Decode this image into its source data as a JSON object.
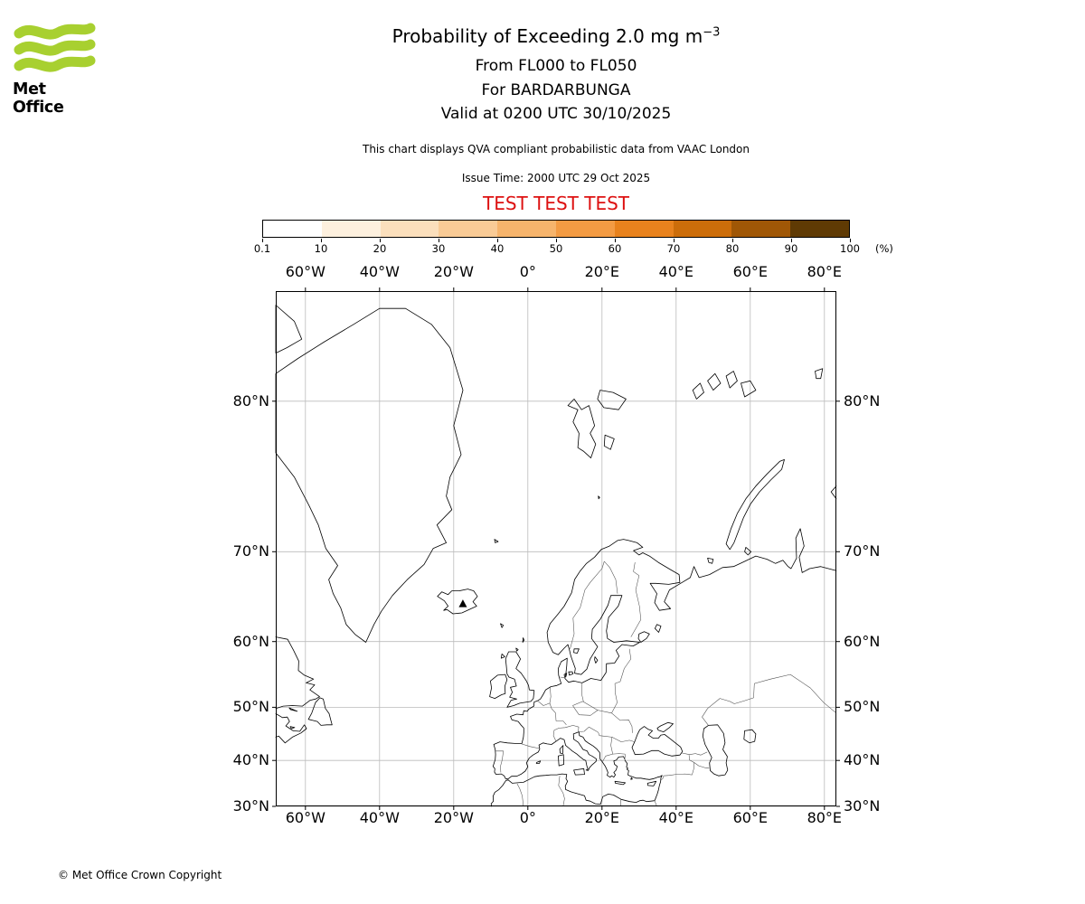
{
  "header": {
    "logo_text": "Met Office",
    "title": "Probability of Exceeding 2.0 mg m",
    "title_sup": "−3",
    "subtitle1": "From FL000 to FL050",
    "subtitle2": "For BARDARBUNGA",
    "subtitle3": "Valid at 0200 UTC 30/10/2025",
    "description": "This chart displays QVA compliant probabilistic data from VAAC London",
    "issue_time": "Issue Time: 2000 UTC 29 Oct 2025",
    "test_banner": "TEST TEST TEST"
  },
  "colorbar": {
    "tick_labels": [
      "0.1",
      "10",
      "20",
      "30",
      "40",
      "50",
      "60",
      "70",
      "80",
      "90",
      "100"
    ],
    "unit_label": "(%)",
    "colors": [
      "#ffffff",
      "#fdf0de",
      "#fbdfbc",
      "#f9cb96",
      "#f6b46c",
      "#f39b43",
      "#e8821d",
      "#cc6d0a",
      "#a05706",
      "#5f3a04"
    ]
  },
  "map": {
    "lon_labels": [
      "60°W",
      "40°W",
      "20°W",
      "0°",
      "20°E",
      "40°E",
      "60°E",
      "80°E"
    ],
    "lon_values": [
      -60,
      -40,
      -20,
      0,
      20,
      40,
      60,
      80
    ],
    "lat_labels": [
      "80°N",
      "70°N",
      "60°N",
      "50°N",
      "40°N",
      "30°N"
    ],
    "lat_values": [
      80,
      70,
      60,
      50,
      40,
      30
    ]
  },
  "footer": {
    "copyright": "© Met Office Crown Copyright"
  }
}
